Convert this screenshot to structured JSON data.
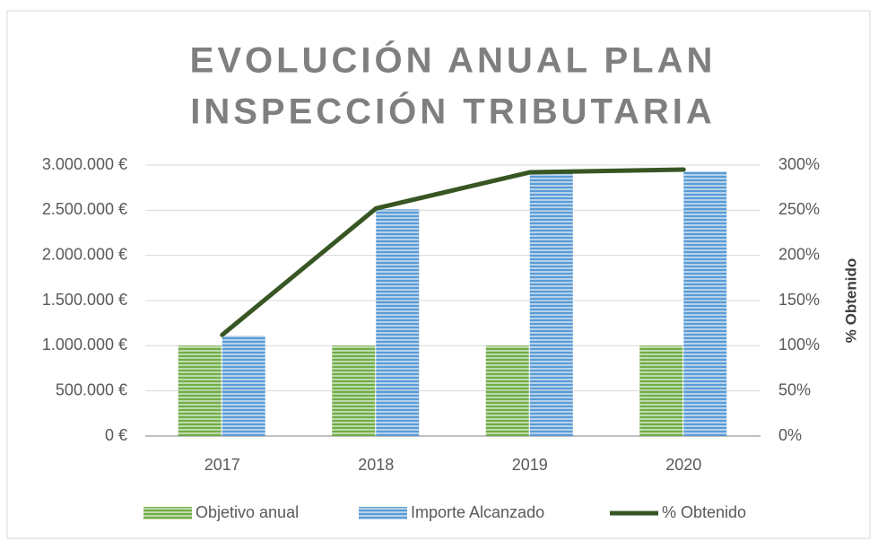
{
  "chart_data": {
    "type": "bar_line",
    "title": [
      "EVOLUCIÓN ANUAL PLAN",
      "INSPECCIÓN TRIBUTARIA"
    ],
    "y2label": "% Obtenido",
    "categories": [
      "2017",
      "2018",
      "2019",
      "2020"
    ],
    "series": [
      {
        "name": "Objetivo anual",
        "type": "bar",
        "color": "#70ad47",
        "values": [
          1000000,
          1000000,
          1000000,
          1000000
        ]
      },
      {
        "name": "Importe Alcanzado",
        "type": "bar",
        "color": "#5b9bd5",
        "values": [
          1110000,
          2510000,
          2920000,
          2930000
        ]
      },
      {
        "name": "% Obtenido",
        "type": "line",
        "axis": "y2",
        "color": "#375623",
        "values": [
          112,
          252,
          292,
          295
        ]
      }
    ],
    "ylim": [
      0,
      3000000
    ],
    "yticks": [
      {
        "value": 0,
        "label": "0 €"
      },
      {
        "value": 500000,
        "label": "500.000 €"
      },
      {
        "value": 1000000,
        "label": "1.000.000 €"
      },
      {
        "value": 1500000,
        "label": "1.500.000 €"
      },
      {
        "value": 2000000,
        "label": "2.000.000 €"
      },
      {
        "value": 2500000,
        "label": "2.500.000 €"
      },
      {
        "value": 3000000,
        "label": "3.000.000 €"
      }
    ],
    "y2lim": [
      0,
      300
    ],
    "y2ticks": [
      {
        "value": 0,
        "label": "0%"
      },
      {
        "value": 50,
        "label": "50%"
      },
      {
        "value": 100,
        "label": "100%"
      },
      {
        "value": 150,
        "label": "150%"
      },
      {
        "value": 200,
        "label": "200%"
      },
      {
        "value": 250,
        "label": "250%"
      },
      {
        "value": 300,
        "label": "300%"
      }
    ],
    "grid": true,
    "legend": "bottom"
  }
}
